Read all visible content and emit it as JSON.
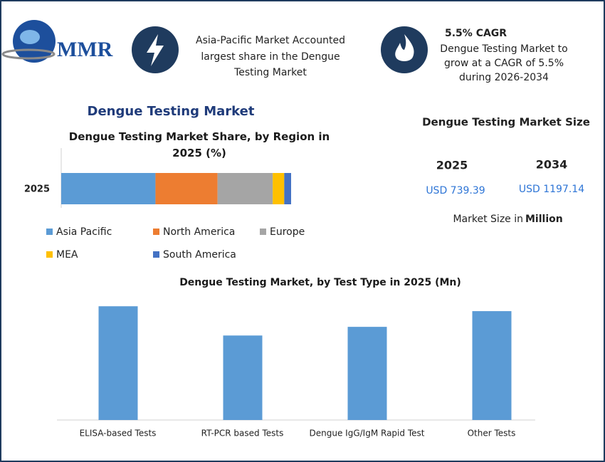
{
  "header": {
    "logo": "MMR",
    "highlight_1": {
      "lines": [
        "Asia-Pacific Market Accounted",
        "largest share in the Dengue",
        "Testing Market"
      ]
    },
    "highlight_2": {
      "title": "5.5% CAGR",
      "lines": [
        "Dengue Testing Market to",
        "grow at a CAGR of 5.5%",
        "during 2026-2034"
      ]
    }
  },
  "main_title": "Dengue Testing Market",
  "market_size": {
    "title": "Dengue Testing Market Size",
    "years": [
      "2025",
      "2034"
    ],
    "values": [
      "USD 739.39",
      "USD 1197.14"
    ],
    "note": "Market Size in",
    "note_unit": "Million"
  },
  "chart_data": [
    {
      "type": "bar",
      "orientation": "horizontal",
      "stacked": true,
      "title": "Dengue Testing Market Share, by Region in 2025 (%)",
      "categories": [
        "2025"
      ],
      "xlim": [
        0,
        100
      ],
      "series": [
        {
          "name": "Asia Pacific",
          "color": "#5b9bd5",
          "values": [
            41
          ]
        },
        {
          "name": "North America",
          "color": "#ed7d31",
          "values": [
            27
          ]
        },
        {
          "name": "Europe",
          "color": "#a5a5a5",
          "values": [
            24
          ]
        },
        {
          "name": "MEA",
          "color": "#ffc000",
          "values": [
            5
          ]
        },
        {
          "name": "South America",
          "color": "#4472c4",
          "values": [
            3
          ]
        }
      ]
    },
    {
      "type": "bar",
      "orientation": "vertical",
      "title": "Dengue Testing Market, by Test Type in 2025 (Mn)",
      "categories": [
        "ELISA-based Tests",
        "RT-PCR based Tests",
        "Dengue IgG/IgM Rapid Test",
        "Other Tests"
      ],
      "values": [
        210,
        156,
        172,
        201
      ],
      "color": "#5b9bd5",
      "ylim": [
        0,
        230
      ]
    }
  ]
}
